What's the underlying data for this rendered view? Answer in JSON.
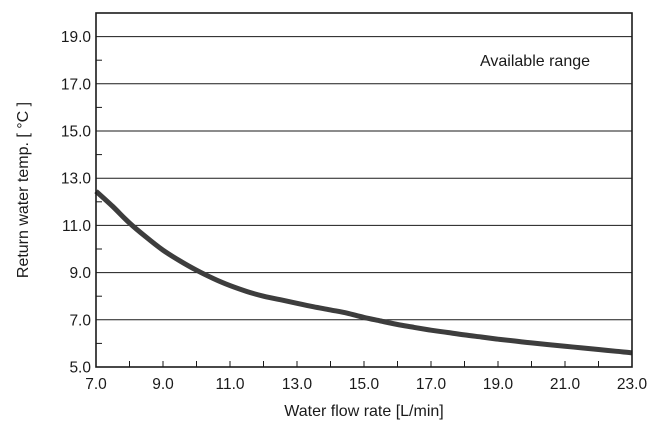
{
  "chart_data": {
    "type": "line",
    "title": "",
    "xlabel": "Water flow rate [L/min]",
    "ylabel": "Return water temp. [ °C ]",
    "xlim": [
      7.0,
      23.0
    ],
    "ylim": [
      5.0,
      20.0
    ],
    "x_ticks": [
      "7.0",
      "9.0",
      "11.0",
      "13.0",
      "15.0",
      "17.0",
      "19.0",
      "21.0",
      "23.0"
    ],
    "y_ticks": [
      "5.0",
      "7.0",
      "9.0",
      "11.0",
      "13.0",
      "15.0",
      "17.0",
      "19.0"
    ],
    "x_minor_step": 1.0,
    "y_minor_step": 1.0,
    "grid": "horizontal",
    "annotation": "Available range",
    "series_color": "#3d3d3d",
    "series": [
      {
        "x": [
          7.0,
          7.5,
          8.0,
          8.5,
          9.0,
          9.5,
          10.0,
          10.5,
          11.0,
          11.5,
          12.0,
          12.5,
          13.0,
          13.5,
          14.0,
          14.5,
          15.0,
          15.5,
          16.0,
          16.5,
          17.0,
          17.5,
          18.0,
          18.5,
          19.0,
          19.5,
          20.0,
          20.5,
          21.0,
          21.5,
          22.0,
          22.5,
          23.0
        ],
        "y": [
          12.45,
          11.8,
          11.1,
          10.5,
          9.95,
          9.5,
          9.1,
          8.75,
          8.45,
          8.2,
          8.0,
          7.85,
          7.7,
          7.55,
          7.42,
          7.28,
          7.1,
          6.95,
          6.8,
          6.68,
          6.56,
          6.46,
          6.36,
          6.27,
          6.18,
          6.1,
          6.02,
          5.95,
          5.88,
          5.81,
          5.74,
          5.67,
          5.6
        ]
      }
    ]
  }
}
